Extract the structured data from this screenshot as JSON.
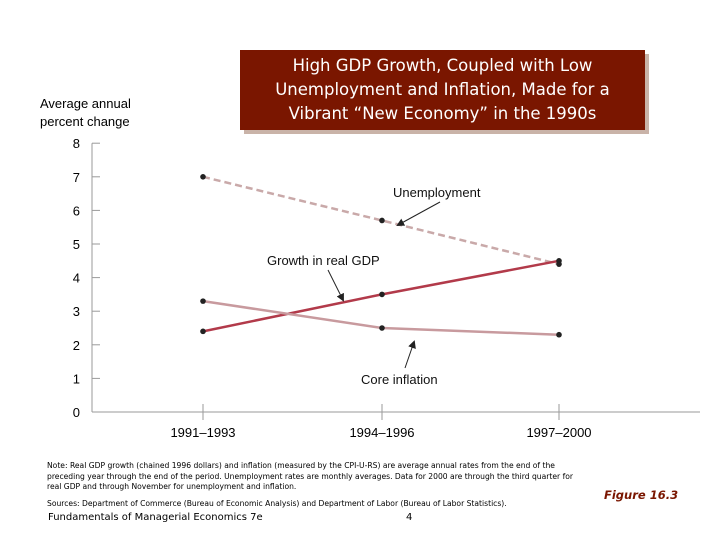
{
  "title": "High GDP Growth, Coupled with Low Unemployment and Inflation, Made for a Vibrant “New Economy” in the 1990s",
  "chart_data": {
    "type": "line",
    "ylabel": "Average annual percent change",
    "xlabel": "",
    "categories": [
      "1991–1993",
      "1994–1996",
      "1997–2000"
    ],
    "ylim": [
      0,
      8
    ],
    "yticks": [
      0,
      1,
      2,
      3,
      4,
      5,
      6,
      7,
      8
    ],
    "grid": false,
    "legend": "none",
    "series": [
      {
        "name": "Unemployment",
        "values": [
          7.0,
          5.7,
          4.4
        ],
        "color": "#c9a9a9",
        "dashed": true
      },
      {
        "name": "Growth in real GDP",
        "values": [
          2.4,
          3.5,
          4.5
        ],
        "color": "#b23a4a",
        "dashed": false
      },
      {
        "name": "Core inflation",
        "values": [
          3.3,
          2.5,
          2.3
        ],
        "color": "#c89a9e",
        "dashed": false
      }
    ]
  },
  "note": "Note: Real GDP growth (chained 1996 dollars) and inflation (measured by the CPI-U-RS) are average annual rates from the end of the preceding year through the end of the period. Unemployment rates are monthly averages. Data for 2000 are through the third quarter for real GDP and through November for unemployment and inflation.",
  "sources": "Sources: Department of Commerce (Bureau of Economic Analysis) and Department of Labor (Bureau of Labor Statistics).",
  "footer": {
    "book": "Fundamentals of Managerial Economics 7e",
    "page": "4"
  },
  "figure_label": "Figure 16.3"
}
